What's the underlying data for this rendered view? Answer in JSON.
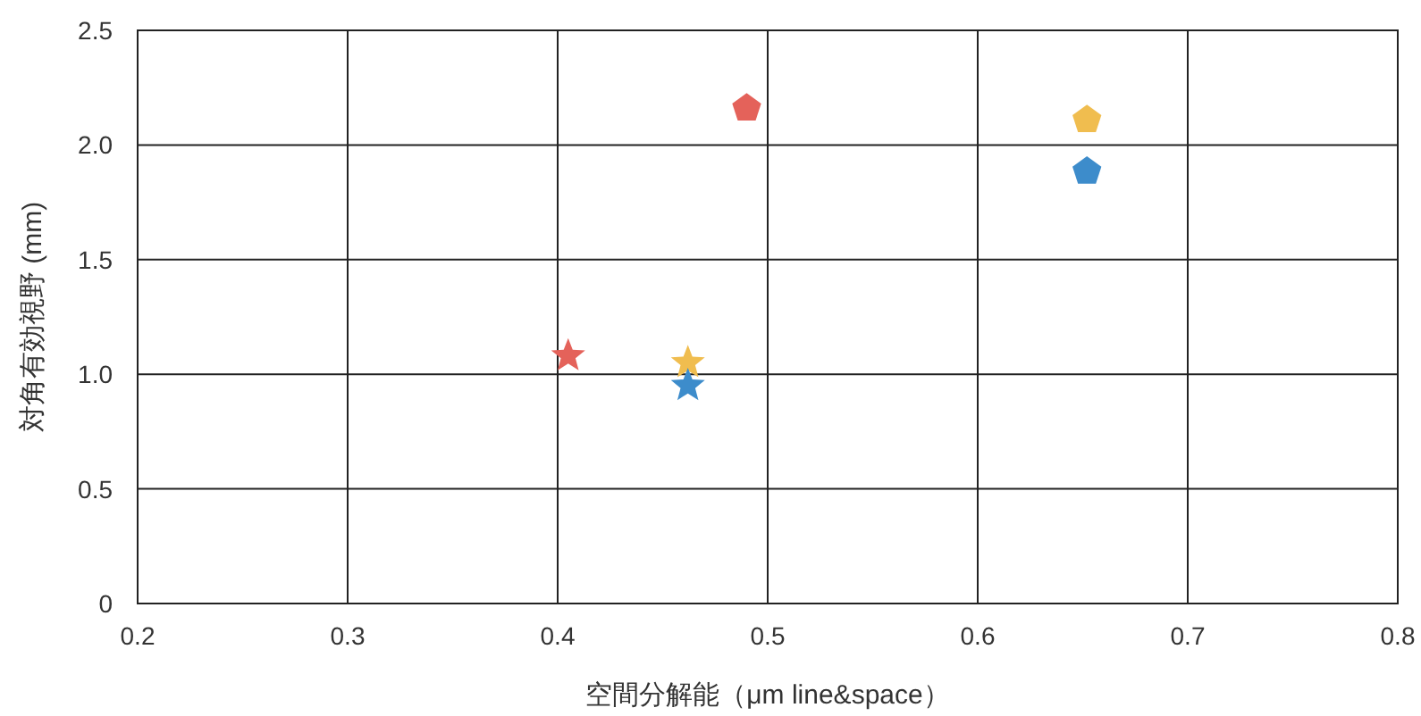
{
  "chart_data": {
    "type": "scatter",
    "xlabel": "空間分解能（μm line&space）",
    "ylabel": "対角有効視野 (mm)",
    "xlim": [
      0.2,
      0.8
    ],
    "xticks": [
      0.2,
      0.3,
      0.4,
      0.5,
      0.6,
      0.7,
      0.8
    ],
    "ylim": [
      0,
      2.5
    ],
    "yticks": [
      0,
      {
        "value": 0.5,
        "label": "0.5"
      },
      {
        "value": 1,
        "label": "1.0"
      },
      {
        "value": 1.5,
        "label": "1.5"
      },
      {
        "value": 2,
        "label": "2.0"
      },
      {
        "value": 2.5,
        "label": "2.5"
      }
    ],
    "grid": true,
    "series": [
      {
        "color": "#e4625a",
        "x": [
          0.49
        ],
        "values": [
          2.16
        ]
      },
      {
        "color": "#f0bd4f",
        "x": [
          0.652
        ],
        "values": [
          2.11
        ]
      },
      {
        "color": "#3d8ccb",
        "x": [
          0.652
        ],
        "values": [
          1.885
        ]
      },
      {
        "color": "#e4625a",
        "marker": "star",
        "x": [
          0.405
        ],
        "values": [
          1.08
        ]
      },
      {
        "color": "#f0bd4f",
        "marker": "star",
        "x": [
          0.462
        ],
        "values": [
          1.05
        ]
      },
      {
        "color": "#3d8ccb",
        "marker": "star",
        "x": [
          0.462
        ],
        "values": [
          0.95
        ]
      }
    ]
  }
}
